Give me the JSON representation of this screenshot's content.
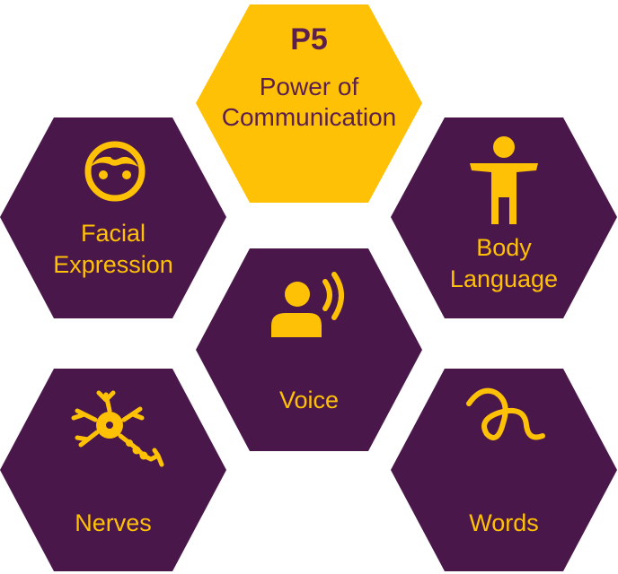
{
  "colors": {
    "purple": "#4A174B",
    "yellow": "#FFC106",
    "center_text": "#5A1F4C"
  },
  "center": {
    "code": "P5",
    "line1": "Power of",
    "line2": "Communication"
  },
  "nodes": {
    "facial": {
      "line1": "Facial",
      "line2": "Expression",
      "icon": "face-icon"
    },
    "body": {
      "line1": "Body",
      "line2": "Language",
      "icon": "person-arms-out-icon"
    },
    "voice": {
      "label": "Voice",
      "icon": "speaking-head-icon"
    },
    "nerves": {
      "label": "Nerves",
      "icon": "neuron-icon"
    },
    "words": {
      "label": "Words",
      "icon": "scribble-icon"
    }
  }
}
